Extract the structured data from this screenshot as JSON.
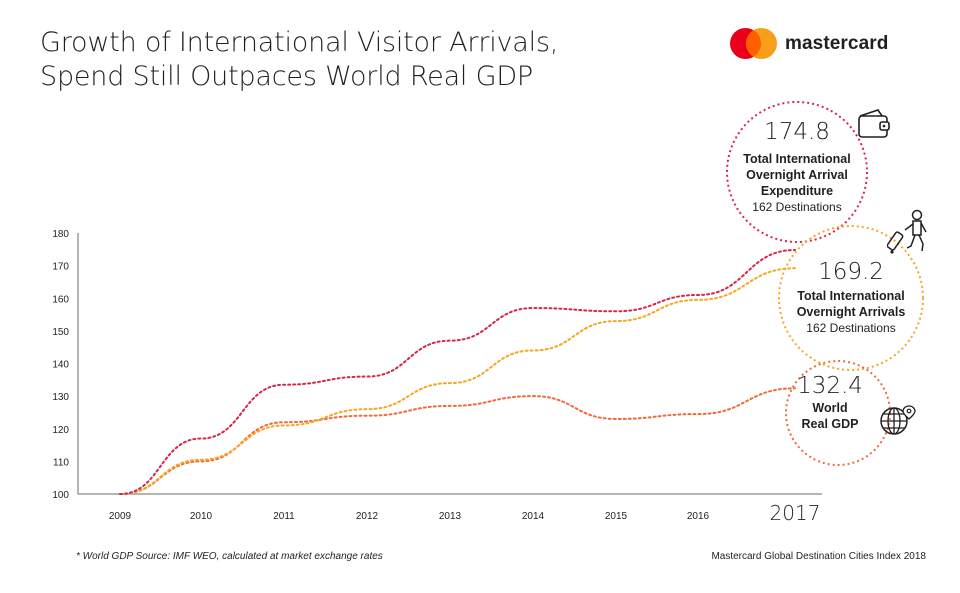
{
  "header": {
    "title_line1": "Growth of International Visitor Arrivals,",
    "title_line2": "Spend Still Outpaces World Real GDP",
    "logo_text": "mastercard",
    "logo_colors": {
      "red": "#eb001b",
      "yellow": "#f79e1b",
      "overlap": "#ff5f00"
    }
  },
  "annotations": {
    "expenditure": {
      "value": "174.8",
      "label_line1": "Total International",
      "label_line2": "Overnight Arrival",
      "label_line3": "Expenditure",
      "sub": "162 Destinations",
      "icon": "wallet-icon"
    },
    "arrivals": {
      "value": "169.2",
      "label_line1": "Total International",
      "label_line2": "Overnight Arrivals",
      "sub": "162 Destinations",
      "icon": "traveler-with-luggage-icon"
    },
    "gdp": {
      "value": "132.4",
      "label_line1": "World",
      "label_line2": "Real GDP",
      "icon": "globe-pin-icon"
    }
  },
  "footer": {
    "note": "* World GDP Source: IMF WEO, calculated at market exchange rates",
    "source": "Mastercard Global Destination Cities Index 2018"
  },
  "chart_data": {
    "type": "line",
    "title": "Growth of International Visitor Arrivals, Spend Still Outpaces World Real GDP",
    "xlabel": "",
    "ylabel": "",
    "x": [
      "2009",
      "2010",
      "2011",
      "2012",
      "2013",
      "2014",
      "2015",
      "2016",
      "2017"
    ],
    "ylim": [
      100,
      180
    ],
    "yticks": [
      100,
      110,
      120,
      130,
      140,
      150,
      160,
      170,
      180
    ],
    "grid": false,
    "line_style": "dotted",
    "series": [
      {
        "name": "Total International Overnight Arrival Expenditure",
        "color": "#d6264a",
        "values": [
          100,
          117,
          133.5,
          136,
          147,
          157,
          156,
          161,
          174.8
        ]
      },
      {
        "name": "Total International Overnight Arrivals",
        "color": "#f5a623",
        "values": [
          100,
          110.5,
          121,
          126,
          134,
          144,
          153,
          159.5,
          169.2
        ]
      },
      {
        "name": "World Real GDP",
        "color": "#ee6a3a",
        "values": [
          100,
          110,
          122,
          124,
          127,
          130,
          123,
          124.5,
          132.4
        ]
      }
    ]
  }
}
